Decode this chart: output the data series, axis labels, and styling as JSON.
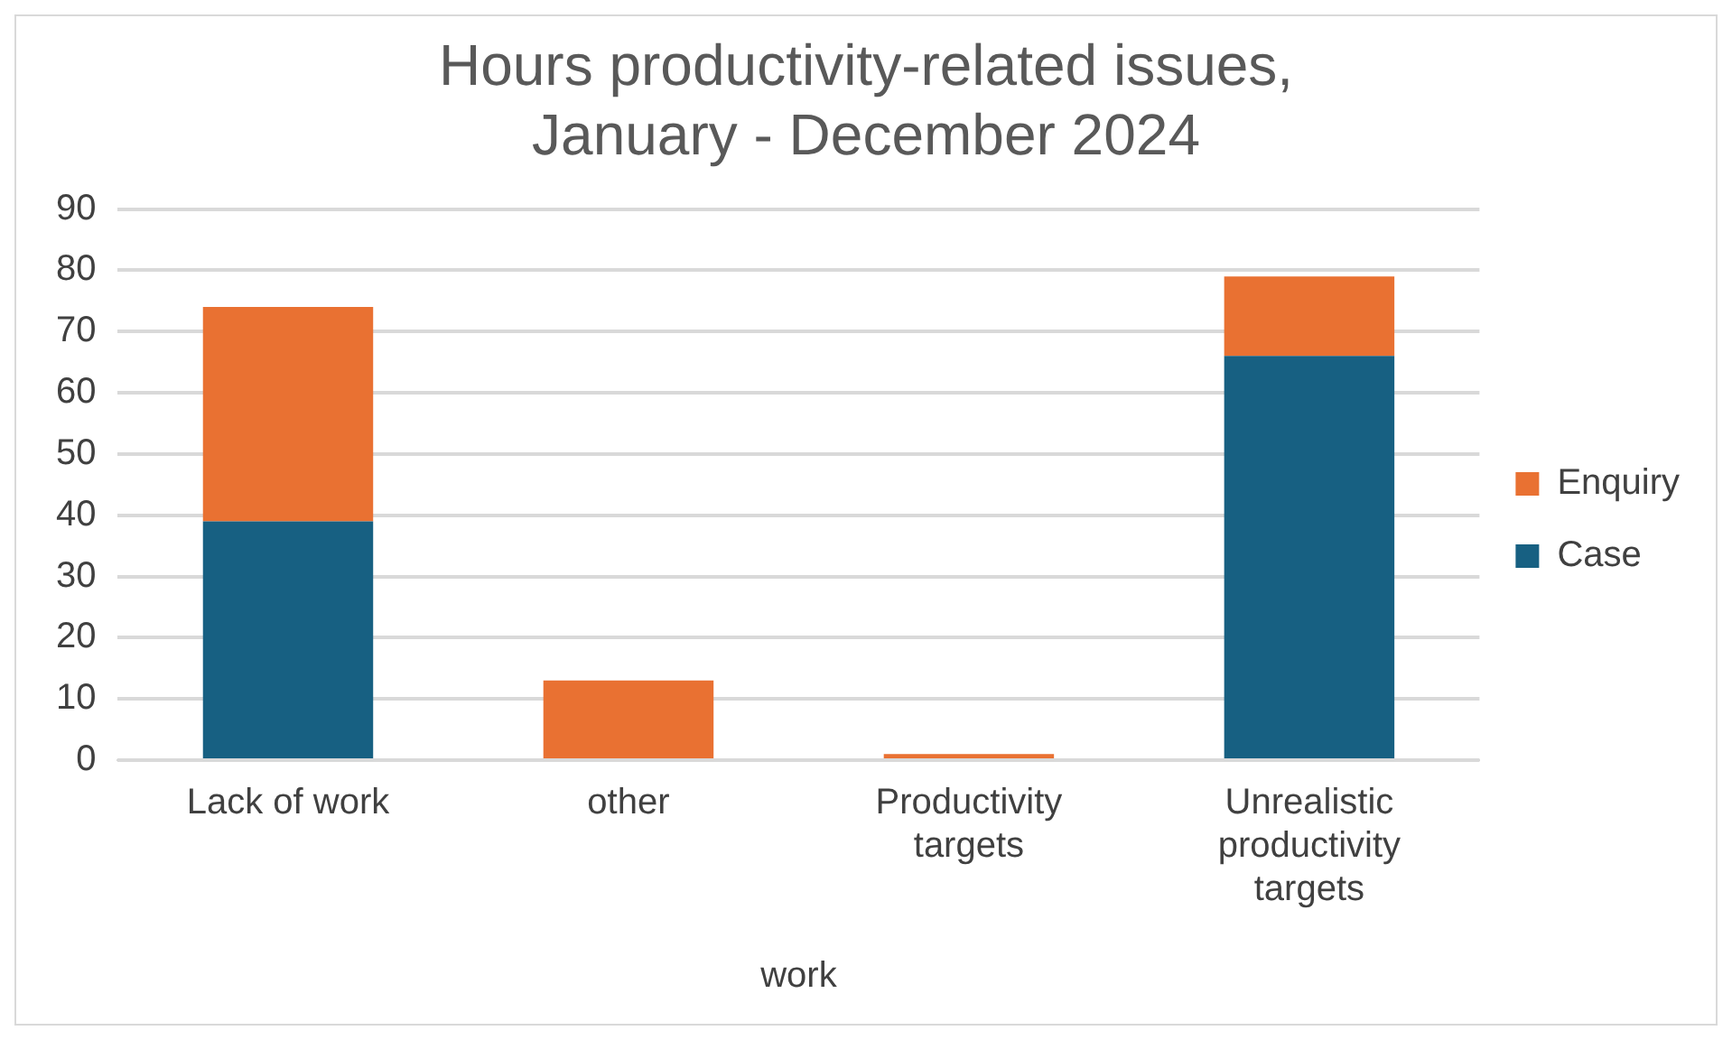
{
  "chart_data": {
    "type": "bar",
    "title": "Hours productivity-related issues, January - December 2024",
    "xlabel": "work",
    "categories": [
      "Lack of work",
      "other",
      "Productivity targets",
      "Unrealistic productivity targets"
    ],
    "stacked": true,
    "series": [
      {
        "name": "Case",
        "color": "#176082",
        "values": [
          39,
          0,
          0,
          66
        ]
      },
      {
        "name": "Enquiry",
        "color": "#e97132",
        "values": [
          35,
          13,
          1,
          13
        ]
      }
    ],
    "ylim": [
      0,
      90
    ],
    "yticks": [
      0,
      10,
      20,
      30,
      40,
      50,
      60,
      70,
      80,
      90
    ],
    "grid": "y",
    "legend": "right"
  }
}
